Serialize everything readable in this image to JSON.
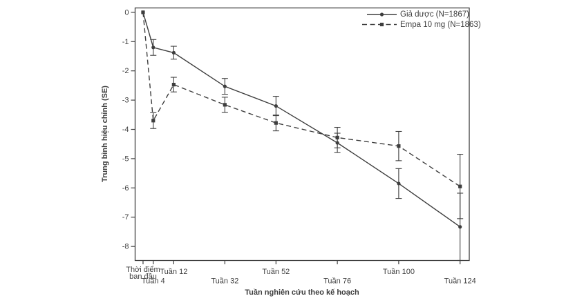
{
  "figure": {
    "background": "#ffffff"
  },
  "chart_data": {
    "type": "line",
    "title": "",
    "xlabel": "Tuần nghiên cứu theo kế hoạch",
    "ylabel": "Trung bình hiệu chỉnh (SE)",
    "ink_color": "#3e3e3e",
    "grid": false,
    "legend_position": "top-right-inside",
    "x": [
      0,
      4,
      12,
      32,
      52,
      76,
      100,
      124
    ],
    "x_tick_labels": [
      {
        "lines": [
          "Thời điểm",
          "ban đầu"
        ],
        "row": "upper"
      },
      {
        "lines": [
          "Tuần 4"
        ],
        "row": "lower"
      },
      {
        "lines": [
          "Tuần 12"
        ],
        "row": "upper"
      },
      {
        "lines": [
          "Tuần 32"
        ],
        "row": "lower"
      },
      {
        "lines": [
          "Tuần 52"
        ],
        "row": "upper"
      },
      {
        "lines": [
          "Tuần 76"
        ],
        "row": "lower"
      },
      {
        "lines": [
          "Tuần 100"
        ],
        "row": "upper"
      },
      {
        "lines": [
          "Tuần 124"
        ],
        "row": "lower"
      }
    ],
    "y_ticks": [
      0,
      -1,
      -2,
      -3,
      -4,
      -5,
      -6,
      -7,
      -8
    ],
    "xlim": [
      -3.1,
      127.6
    ],
    "ylim": [
      -8.48,
      0.15
    ],
    "series": [
      {
        "name": "Giả dược (N=1867)",
        "line": "solid",
        "marker": "circle",
        "values": [
          0,
          -1.2,
          -1.38,
          -2.53,
          -3.2,
          -4.46,
          -5.85,
          -7.33
        ],
        "se": [
          0,
          0.27,
          0.22,
          0.27,
          0.33,
          0.33,
          0.51,
          1.15
        ]
      },
      {
        "name": "Empa 10 mg (N=1863)",
        "line": "dashed",
        "marker": "square",
        "values": [
          0,
          -3.7,
          -2.47,
          -3.16,
          -3.78,
          -4.28,
          -4.57,
          -5.95
        ],
        "se": [
          0,
          0.27,
          0.25,
          0.26,
          0.27,
          0.35,
          0.5,
          1.1
        ]
      }
    ]
  }
}
